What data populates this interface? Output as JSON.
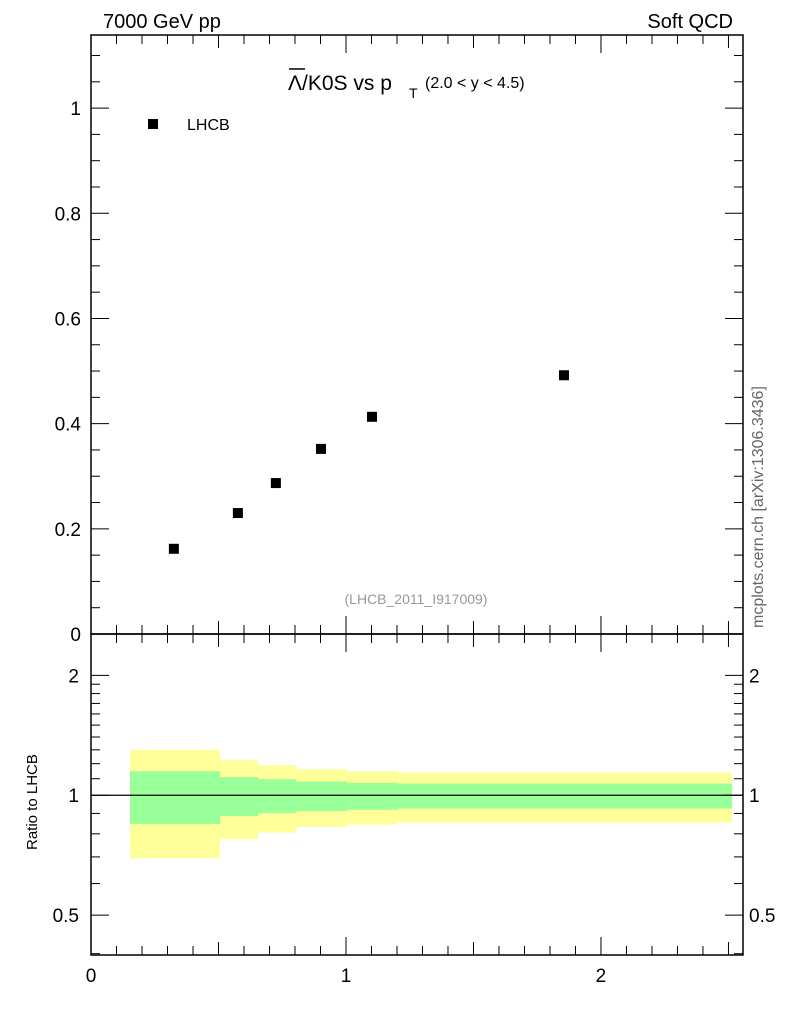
{
  "header": {
    "left": "7000 GeV pp",
    "right": "Soft QCD"
  },
  "side_label": "mcplots.cern.ch [arXiv:1306.3436]",
  "chart_data": [
    {
      "type": "scatter",
      "title_main": "/K0S vs p",
      "title_lambda": "Λ",
      "title_sub": "T",
      "title_range": "(2.0 < y < 4.5)",
      "legend": [
        {
          "label": "LHCB",
          "marker": "square",
          "color": "#000000"
        }
      ],
      "legend_placement": "top-left",
      "annotation": "(LHCB_2011_I917009)",
      "xlim": [
        0,
        2.557
      ],
      "ylim": [
        0,
        1.139
      ],
      "yticks": [
        0,
        0.2,
        0.4,
        0.6,
        0.8,
        1
      ],
      "ytick_labels": [
        "0",
        "0.2",
        "0.4",
        "0.6",
        "0.8",
        "1"
      ],
      "series": [
        {
          "name": "LHCB",
          "x": [
            0.325,
            0.576,
            0.725,
            0.902,
            1.102,
            1.855
          ],
          "y": [
            0.162,
            0.23,
            0.287,
            0.352,
            0.413,
            0.492
          ]
        }
      ]
    },
    {
      "type": "area",
      "ylabel": "Ratio to LHCB",
      "yscale": "log",
      "xlim": [
        0,
        2.557
      ],
      "ylim": [
        0.397,
        2.54
      ],
      "yticks": [
        0.5,
        1,
        2
      ],
      "ytick_labels": [
        "0.5",
        "1",
        "2"
      ],
      "xticks": [
        0,
        1,
        2
      ],
      "xtick_labels": [
        "0",
        "1",
        "2"
      ],
      "bin_edges": [
        0.153,
        0.506,
        0.655,
        0.804,
        1.004,
        1.204,
        2.514
      ],
      "stat_band": {
        "color": "#99ff99",
        "low": [
          0.846,
          0.886,
          0.901,
          0.912,
          0.919,
          0.926
        ],
        "high": [
          1.149,
          1.11,
          1.097,
          1.082,
          1.074,
          1.07
        ]
      },
      "total_band": {
        "color": "#ffff99",
        "low": [
          0.695,
          0.776,
          0.806,
          0.833,
          0.844,
          0.854
        ],
        "high": [
          1.3,
          1.224,
          1.189,
          1.162,
          1.149,
          1.14
        ]
      },
      "reference_line": 1
    }
  ]
}
